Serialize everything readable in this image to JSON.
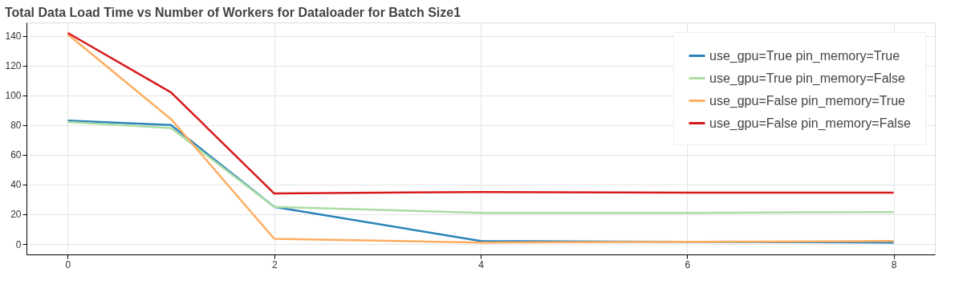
{
  "chart_data": {
    "type": "line",
    "title": "Total Data Load Time vs Number of Workers for Dataloader for Batch Size1",
    "x": [
      0,
      1,
      2,
      4,
      6,
      8
    ],
    "series": [
      {
        "name": "use_gpu=True pin_memory=True",
        "color": "#2b83ba",
        "values": [
          83,
          80,
          25,
          2,
          1.5,
          1
        ]
      },
      {
        "name": "use_gpu=True pin_memory=False",
        "color": "#abdda4",
        "values": [
          82,
          78,
          25,
          21,
          21,
          21.5
        ]
      },
      {
        "name": "use_gpu=False pin_memory=True",
        "color": "#fdae61",
        "values": [
          141,
          84,
          3.5,
          1,
          1.5,
          2
        ]
      },
      {
        "name": "use_gpu=False pin_memory=False",
        "color": "#d7191c",
        "values": [
          142,
          102,
          34,
          35,
          34.5,
          34.5
        ]
      }
    ],
    "xlim": [
      -0.4,
      8.4
    ],
    "xticks": [
      0,
      2,
      4,
      6,
      8
    ],
    "ylim": [
      -7,
      149
    ],
    "yticks": [
      0,
      20,
      40,
      60,
      80,
      100,
      120,
      140
    ],
    "grid": true,
    "legend": "top right",
    "marker": "none",
    "line_style": "solid"
  }
}
